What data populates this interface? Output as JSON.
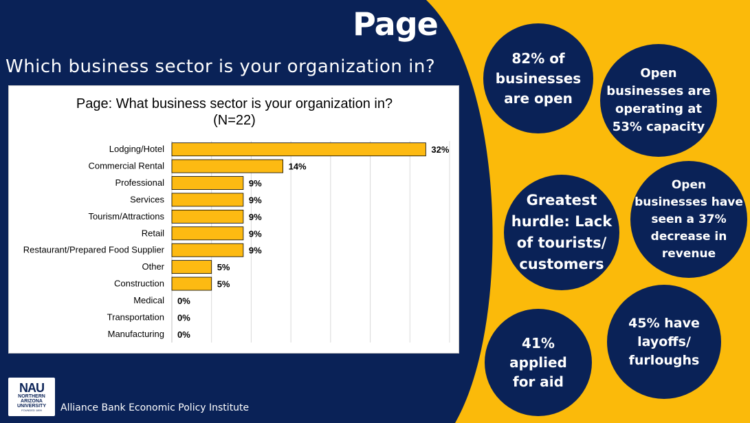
{
  "page": {
    "title": "Page",
    "question": "Which business sector is your organization in?",
    "footer": "Alliance Bank Economic Policy Institute"
  },
  "colors": {
    "navy": "#0a2257",
    "gold": "#fbba0a",
    "bar": "#fdba12"
  },
  "logo": {
    "main": "NAU",
    "line1": "NORTHERN",
    "line2": "ARIZONA",
    "line3": "UNIVERSITY",
    "founded": "FOUNDED 1899"
  },
  "stats": [
    {
      "lines": [
        "82% of",
        "businesses",
        "are open"
      ]
    },
    {
      "lines": [
        "Open",
        "businesses are",
        "operating at",
        "53% capacity"
      ]
    },
    {
      "lines": [
        "Greatest",
        "hurdle: Lack",
        "of tourists/",
        "customers"
      ]
    },
    {
      "lines": [
        "Open",
        "businesses have",
        "seen a 37%",
        "decrease in",
        "revenue"
      ]
    },
    {
      "lines": [
        "45% have",
        "layoffs/",
        "furloughs"
      ]
    },
    {
      "lines": [
        "41%",
        "applied",
        "for aid"
      ]
    }
  ],
  "chart_data": {
    "type": "bar",
    "orientation": "horizontal",
    "title": [
      "Page: What business sector is your organization in?",
      "(N=22)"
    ],
    "categories": [
      "Lodging/Hotel",
      "Commercial Rental",
      "Professional",
      "Services",
      "Tourism/Attractions",
      "Retail",
      "Restaurant/Prepared Food Supplier",
      "Other",
      "Construction",
      "Medical",
      "Transportation",
      "Manufacturing"
    ],
    "values": [
      32,
      14,
      9,
      9,
      9,
      9,
      9,
      5,
      5,
      0,
      0,
      0
    ],
    "data_labels": [
      "32%",
      "14%",
      "9%",
      "9%",
      "9%",
      "9%",
      "9%",
      "5%",
      "5%",
      "0%",
      "0%",
      "0%"
    ],
    "xlim": [
      0,
      35
    ],
    "grid": true,
    "gridline_step": 5
  }
}
